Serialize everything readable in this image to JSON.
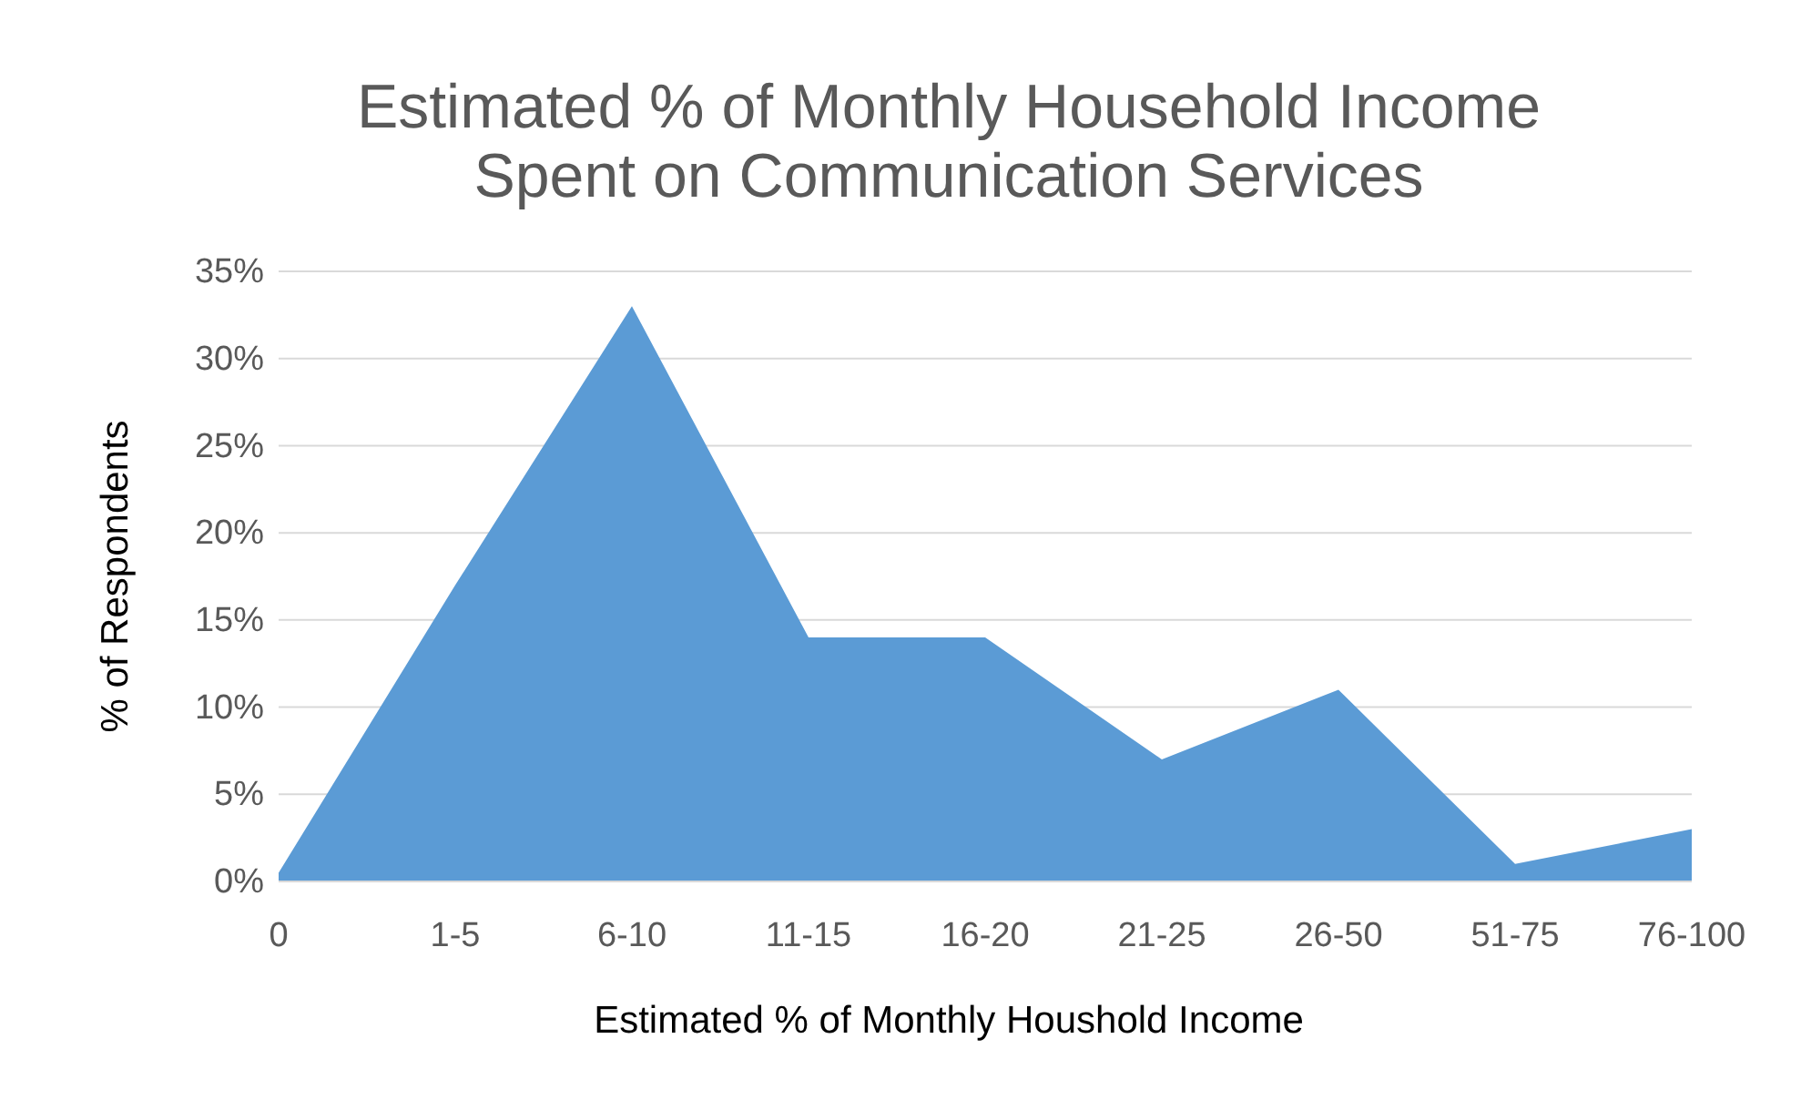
{
  "chart_data": {
    "type": "area",
    "title": "Estimated % of Monthly Household Income\nSpent on Communication Services",
    "xlabel": "Estimated % of Monthly Houshold Income",
    "ylabel": "% of Respondents",
    "categories": [
      "0",
      "1-5",
      "6-10",
      "11-15",
      "16-20",
      "21-25",
      "26-50",
      "51-75",
      "76-100"
    ],
    "series": [
      {
        "color": "#5b9bd5",
        "values": [
          0.5,
          17,
          33,
          14,
          14,
          7,
          11,
          1,
          3
        ]
      }
    ],
    "ylim": [
      0,
      35
    ],
    "yticks": [
      {
        "value": 0,
        "label": "0%"
      },
      {
        "value": 5,
        "label": "5%"
      },
      {
        "value": 10,
        "label": "10%"
      },
      {
        "value": 15,
        "label": "15%"
      },
      {
        "value": 20,
        "label": "20%"
      },
      {
        "value": 25,
        "label": "25%"
      },
      {
        "value": 30,
        "label": "30%"
      },
      {
        "value": 35,
        "label": "35%"
      }
    ],
    "grid": "y",
    "legend": false
  }
}
